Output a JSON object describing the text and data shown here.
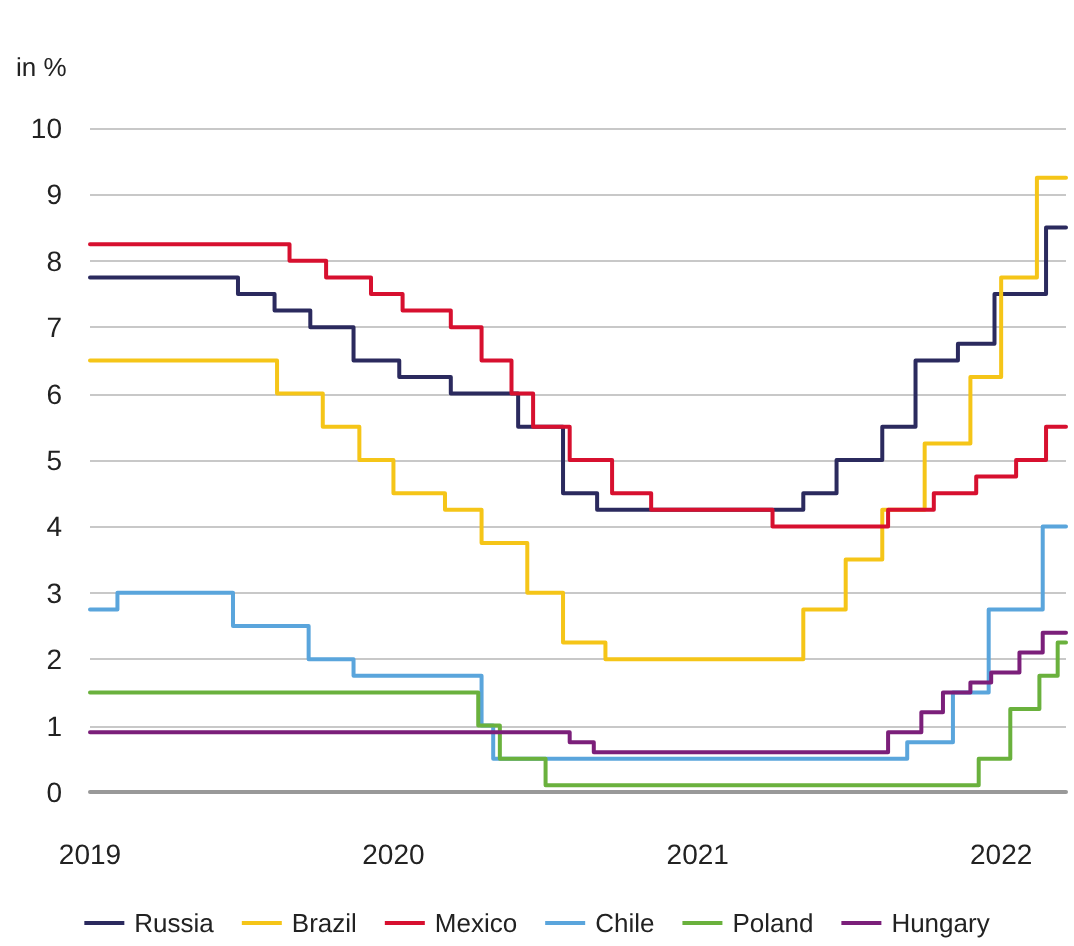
{
  "chart_data": {
    "type": "step",
    "ylabel": "in %",
    "xlim": [
      "2019-01-01",
      "2022-03-20"
    ],
    "xticks": [
      {
        "value": "2019-01-01",
        "label": "2019"
      },
      {
        "value": "2020-01-01",
        "label": "2020"
      },
      {
        "value": "2021-01-01",
        "label": "2021"
      },
      {
        "value": "2022-01-01",
        "label": "2022"
      }
    ],
    "ylim": [
      0,
      10
    ],
    "yticks": [
      0,
      1,
      2,
      3,
      4,
      5,
      6,
      7,
      8,
      9,
      10
    ],
    "grid": "y",
    "legend": "bottom",
    "line_style": "solid",
    "marker": "none",
    "series": [
      {
        "name": "Russia",
        "color": "#2b2a5e",
        "x": [
          "2019-01-01",
          "2019-06-28",
          "2019-08-11",
          "2019-09-23",
          "2019-11-14",
          "2020-01-08",
          "2020-03-10",
          "2020-05-30",
          "2020-07-23",
          "2020-09-02",
          "2021-05-08",
          "2021-06-17",
          "2021-08-11",
          "2021-09-20",
          "2021-11-10",
          "2021-12-24",
          "2022-02-24",
          "2022-03-20"
        ],
        "values": [
          7.75,
          7.5,
          7.25,
          7.0,
          6.5,
          6.25,
          6.0,
          5.5,
          4.5,
          4.25,
          4.5,
          5.0,
          5.5,
          6.5,
          6.75,
          7.5,
          8.5,
          8.5
        ]
      },
      {
        "name": "Brazil",
        "color": "#f5c518",
        "x": [
          "2019-01-01",
          "2019-08-14",
          "2019-10-08",
          "2019-11-21",
          "2020-01-01",
          "2020-03-03",
          "2020-04-16",
          "2020-06-10",
          "2020-07-23",
          "2020-09-12",
          "2021-05-08",
          "2021-06-28",
          "2021-08-11",
          "2021-10-01",
          "2021-11-25",
          "2022-01-01",
          "2022-02-13",
          "2022-03-20"
        ],
        "values": [
          6.5,
          6.0,
          5.5,
          5.0,
          4.5,
          4.25,
          3.75,
          3.0,
          2.25,
          2.0,
          2.75,
          3.5,
          4.25,
          5.25,
          6.25,
          7.75,
          9.25,
          9.25
        ]
      },
      {
        "name": "Mexico",
        "color": "#d7102f",
        "x": [
          "2019-01-01",
          "2019-08-29",
          "2019-10-12",
          "2019-12-05",
          "2020-01-12",
          "2020-03-10",
          "2020-04-16",
          "2020-05-22",
          "2020-06-17",
          "2020-07-31",
          "2020-09-20",
          "2020-11-06",
          "2021-04-01",
          "2021-08-18",
          "2021-10-12",
          "2021-12-02",
          "2022-01-19",
          "2022-02-24",
          "2022-03-20"
        ],
        "values": [
          8.25,
          8.0,
          7.75,
          7.5,
          7.25,
          7.0,
          6.5,
          6.0,
          5.5,
          5.0,
          4.5,
          4.25,
          4.0,
          4.25,
          4.5,
          4.75,
          5.0,
          5.5,
          5.5
        ]
      },
      {
        "name": "Chile",
        "color": "#5aa5dc",
        "x": [
          "2019-01-01",
          "2019-02-03",
          "2019-06-22",
          "2019-09-21",
          "2019-11-14",
          "2020-04-16",
          "2020-04-30",
          "2021-09-10",
          "2021-11-04",
          "2021-12-17",
          "2022-02-20",
          "2022-03-20"
        ],
        "values": [
          2.75,
          3.0,
          2.5,
          2.0,
          1.75,
          1.0,
          0.5,
          0.75,
          1.5,
          2.75,
          4.0,
          4.0
        ]
      },
      {
        "name": "Poland",
        "color": "#6ab13d",
        "x": [
          "2019-01-01",
          "2020-04-12",
          "2020-05-08",
          "2020-07-02",
          "2021-12-05",
          "2022-01-12",
          "2022-02-16",
          "2022-03-10",
          "2022-03-20"
        ],
        "values": [
          1.5,
          1.0,
          0.5,
          0.1,
          0.5,
          1.25,
          1.75,
          2.25,
          2.25
        ]
      },
      {
        "name": "Hungary",
        "color": "#7b1f7a",
        "x": [
          "2019-01-01",
          "2020-07-31",
          "2020-08-29",
          "2021-08-18",
          "2021-09-27",
          "2021-10-23",
          "2021-11-25",
          "2021-12-20",
          "2022-01-23",
          "2022-02-20",
          "2022-03-20"
        ],
        "values": [
          0.9,
          0.75,
          0.6,
          0.9,
          1.2,
          1.5,
          1.65,
          1.8,
          2.1,
          2.4,
          2.4
        ]
      }
    ]
  }
}
